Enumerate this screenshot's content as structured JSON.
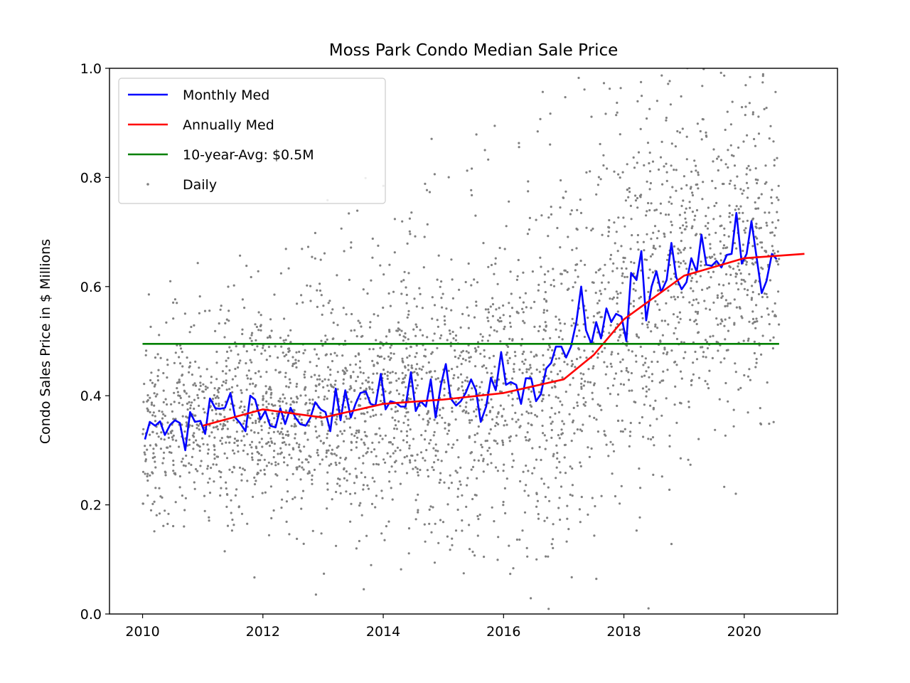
{
  "chart_data": {
    "type": "line",
    "title": "Moss Park Condo Median Sale Price",
    "xlabel": "",
    "ylabel": "Condo Sales Price in $ Millions",
    "xlim": [
      2009.45,
      2021.55
    ],
    "ylim": [
      0.0,
      1.0
    ],
    "x_ticks": [
      2010,
      2012,
      2014,
      2016,
      2018,
      2020
    ],
    "y_ticks": [
      0.0,
      0.2,
      0.4,
      0.6,
      0.8,
      1.0
    ],
    "x_tick_labels": [
      "2010",
      "2012",
      "2014",
      "2016",
      "2018",
      "2020"
    ],
    "y_tick_labels": [
      "0.0",
      "0.2",
      "0.4",
      "0.6",
      "0.8",
      "1.0"
    ],
    "grid": false,
    "legend_position": "top-left",
    "series": [
      {
        "name": "Monthly Med",
        "type": "line",
        "color": "#0000ff",
        "points": [
          [
            2010.04,
            0.32
          ],
          [
            2010.12,
            0.352
          ],
          [
            2010.21,
            0.345
          ],
          [
            2010.29,
            0.353
          ],
          [
            2010.37,
            0.328
          ],
          [
            2010.46,
            0.347
          ],
          [
            2010.54,
            0.355
          ],
          [
            2010.62,
            0.35
          ],
          [
            2010.71,
            0.3
          ],
          [
            2010.79,
            0.37
          ],
          [
            2010.87,
            0.352
          ],
          [
            2010.96,
            0.354
          ],
          [
            2011.04,
            0.33
          ],
          [
            2011.12,
            0.395
          ],
          [
            2011.21,
            0.377
          ],
          [
            2011.29,
            0.376
          ],
          [
            2011.37,
            0.378
          ],
          [
            2011.46,
            0.405
          ],
          [
            2011.54,
            0.36
          ],
          [
            2011.62,
            0.35
          ],
          [
            2011.71,
            0.335
          ],
          [
            2011.79,
            0.4
          ],
          [
            2011.87,
            0.393
          ],
          [
            2011.96,
            0.357
          ],
          [
            2012.04,
            0.372
          ],
          [
            2012.12,
            0.345
          ],
          [
            2012.21,
            0.342
          ],
          [
            2012.29,
            0.377
          ],
          [
            2012.37,
            0.348
          ],
          [
            2012.46,
            0.378
          ],
          [
            2012.54,
            0.36
          ],
          [
            2012.62,
            0.348
          ],
          [
            2012.71,
            0.345
          ],
          [
            2012.79,
            0.36
          ],
          [
            2012.87,
            0.388
          ],
          [
            2012.96,
            0.375
          ],
          [
            2013.04,
            0.37
          ],
          [
            2013.12,
            0.335
          ],
          [
            2013.21,
            0.413
          ],
          [
            2013.29,
            0.355
          ],
          [
            2013.37,
            0.41
          ],
          [
            2013.46,
            0.36
          ],
          [
            2013.54,
            0.385
          ],
          [
            2013.62,
            0.405
          ],
          [
            2013.71,
            0.408
          ],
          [
            2013.79,
            0.385
          ],
          [
            2013.87,
            0.382
          ],
          [
            2013.96,
            0.44
          ],
          [
            2014.04,
            0.375
          ],
          [
            2014.12,
            0.39
          ],
          [
            2014.21,
            0.387
          ],
          [
            2014.29,
            0.38
          ],
          [
            2014.37,
            0.38
          ],
          [
            2014.46,
            0.443
          ],
          [
            2014.54,
            0.372
          ],
          [
            2014.62,
            0.39
          ],
          [
            2014.71,
            0.38
          ],
          [
            2014.79,
            0.43
          ],
          [
            2014.87,
            0.36
          ],
          [
            2014.96,
            0.42
          ],
          [
            2015.04,
            0.458
          ],
          [
            2015.12,
            0.395
          ],
          [
            2015.21,
            0.382
          ],
          [
            2015.29,
            0.39
          ],
          [
            2015.37,
            0.405
          ],
          [
            2015.46,
            0.43
          ],
          [
            2015.54,
            0.41
          ],
          [
            2015.62,
            0.352
          ],
          [
            2015.71,
            0.38
          ],
          [
            2015.79,
            0.433
          ],
          [
            2015.87,
            0.41
          ],
          [
            2015.96,
            0.48
          ],
          [
            2016.04,
            0.42
          ],
          [
            2016.12,
            0.425
          ],
          [
            2016.21,
            0.42
          ],
          [
            2016.29,
            0.385
          ],
          [
            2016.37,
            0.432
          ],
          [
            2016.46,
            0.432
          ],
          [
            2016.54,
            0.39
          ],
          [
            2016.62,
            0.403
          ],
          [
            2016.71,
            0.45
          ],
          [
            2016.79,
            0.46
          ],
          [
            2016.87,
            0.49
          ],
          [
            2016.96,
            0.49
          ],
          [
            2017.04,
            0.47
          ],
          [
            2017.12,
            0.49
          ],
          [
            2017.21,
            0.535
          ],
          [
            2017.29,
            0.6
          ],
          [
            2017.37,
            0.52
          ],
          [
            2017.46,
            0.495
          ],
          [
            2017.54,
            0.535
          ],
          [
            2017.62,
            0.505
          ],
          [
            2017.71,
            0.56
          ],
          [
            2017.79,
            0.535
          ],
          [
            2017.87,
            0.55
          ],
          [
            2017.96,
            0.545
          ],
          [
            2018.04,
            0.5
          ],
          [
            2018.12,
            0.625
          ],
          [
            2018.21,
            0.612
          ],
          [
            2018.29,
            0.665
          ],
          [
            2018.37,
            0.538
          ],
          [
            2018.46,
            0.6
          ],
          [
            2018.54,
            0.628
          ],
          [
            2018.62,
            0.59
          ],
          [
            2018.71,
            0.612
          ],
          [
            2018.79,
            0.68
          ],
          [
            2018.87,
            0.617
          ],
          [
            2018.96,
            0.595
          ],
          [
            2019.04,
            0.608
          ],
          [
            2019.12,
            0.652
          ],
          [
            2019.21,
            0.627
          ],
          [
            2019.29,
            0.695
          ],
          [
            2019.37,
            0.64
          ],
          [
            2019.46,
            0.638
          ],
          [
            2019.54,
            0.647
          ],
          [
            2019.62,
            0.635
          ],
          [
            2019.71,
            0.658
          ],
          [
            2019.79,
            0.66
          ],
          [
            2019.87,
            0.735
          ],
          [
            2019.96,
            0.642
          ],
          [
            2020.04,
            0.66
          ],
          [
            2020.12,
            0.72
          ],
          [
            2020.21,
            0.65
          ],
          [
            2020.29,
            0.588
          ],
          [
            2020.37,
            0.61
          ],
          [
            2020.46,
            0.66
          ],
          [
            2020.54,
            0.65
          ]
        ]
      },
      {
        "name": "Annually Med",
        "type": "line",
        "color": "#ff0000",
        "points": [
          [
            2011.0,
            0.345
          ],
          [
            2012.0,
            0.375
          ],
          [
            2013.0,
            0.36
          ],
          [
            2014.0,
            0.385
          ],
          [
            2015.0,
            0.393
          ],
          [
            2016.0,
            0.405
          ],
          [
            2017.0,
            0.43
          ],
          [
            2017.5,
            0.475
          ],
          [
            2018.0,
            0.54
          ],
          [
            2019.0,
            0.62
          ],
          [
            2020.0,
            0.652
          ],
          [
            2021.0,
            0.66
          ]
        ]
      },
      {
        "name": "10-year-Avg: $0.5M",
        "type": "line",
        "color": "#008000",
        "points": [
          [
            2010.0,
            0.495
          ],
          [
            2020.58,
            0.495
          ]
        ]
      },
      {
        "name": "Daily",
        "type": "scatter",
        "color": "#808080",
        "note_points": "generated",
        "density_envelope": [
          [
            2010.0,
            0.22,
            0.5
          ],
          [
            2011.0,
            0.22,
            0.55
          ],
          [
            2012.0,
            0.24,
            0.58
          ],
          [
            2013.0,
            0.25,
            0.62
          ],
          [
            2014.0,
            0.25,
            0.66
          ],
          [
            2015.0,
            0.25,
            0.7
          ],
          [
            2016.0,
            0.25,
            0.72
          ],
          [
            2017.0,
            0.28,
            0.85
          ],
          [
            2018.0,
            0.35,
            0.92
          ],
          [
            2019.0,
            0.4,
            0.95
          ],
          [
            2020.0,
            0.42,
            0.95
          ],
          [
            2020.58,
            0.42,
            0.9
          ]
        ]
      }
    ],
    "legend": [
      {
        "label": "Monthly Med",
        "kind": "line",
        "color": "#0000ff"
      },
      {
        "label": "Annually Med",
        "kind": "line",
        "color": "#ff0000"
      },
      {
        "label": "10-year-Avg: $0.5M",
        "kind": "line",
        "color": "#008000"
      },
      {
        "label": "Daily",
        "kind": "dots",
        "color": "#808080"
      }
    ]
  }
}
